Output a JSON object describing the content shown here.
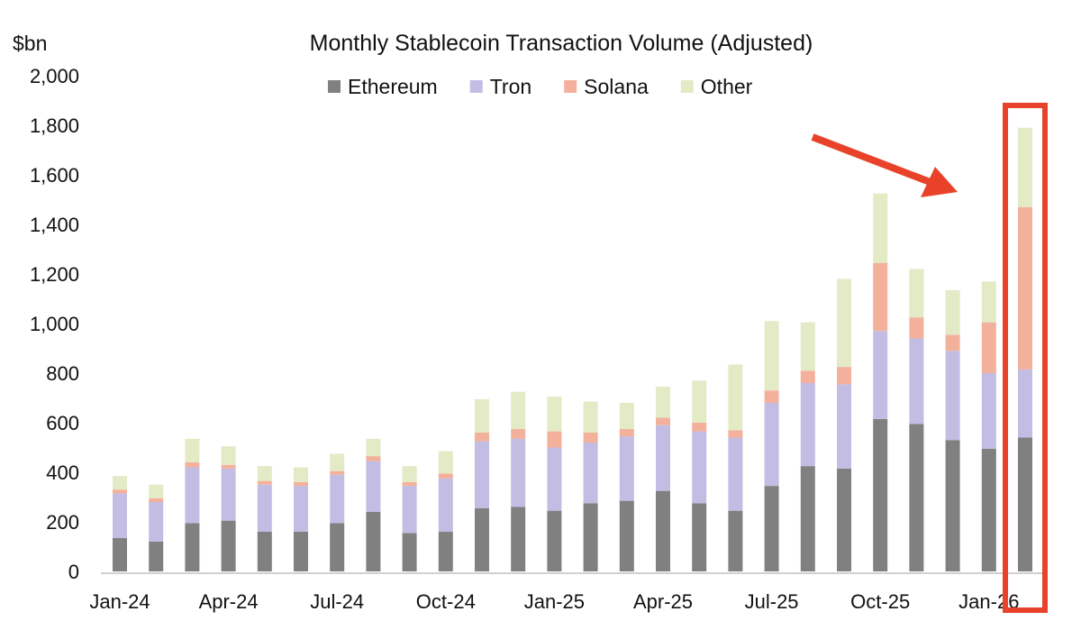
{
  "chart_data": {
    "type": "stacked-bar",
    "title": "Monthly Stablecoin Transaction Volume (Adjusted)",
    "ylabel": "$bn",
    "xlabel": "",
    "ylim": [
      0,
      2000
    ],
    "yticks": [
      "0",
      "200",
      "400",
      "600",
      "800",
      "1,000",
      "1,200",
      "1,400",
      "1,600",
      "1,800",
      "2,000"
    ],
    "xtick_labels": [
      "Jan-24",
      "Apr-24",
      "Jul-24",
      "Oct-24",
      "Jan-25",
      "Apr-25",
      "Jul-25",
      "Oct-25",
      "Jan-26"
    ],
    "categories": [
      "Jan-24",
      "Feb-24",
      "Mar-24",
      "Apr-24",
      "May-24",
      "Jun-24",
      "Jul-24",
      "Aug-24",
      "Sep-24",
      "Oct-24",
      "Nov-24",
      "Dec-24",
      "Jan-25",
      "Feb-25",
      "Mar-25",
      "Apr-25",
      "May-25",
      "Jun-25",
      "Jul-25",
      "Aug-25",
      "Sep-25",
      "Oct-25",
      "Nov-25",
      "Dec-25",
      "Jan-26",
      "Feb-26"
    ],
    "legend_position": "top",
    "grid": false,
    "series": [
      {
        "name": "Ethereum",
        "color": "#808080",
        "values": [
          135,
          120,
          195,
          205,
          160,
          160,
          195,
          240,
          155,
          160,
          255,
          260,
          245,
          275,
          285,
          325,
          275,
          245,
          345,
          425,
          415,
          615,
          595,
          530,
          495,
          540
        ]
      },
      {
        "name": "Tron",
        "color": "#c3bde3",
        "values": [
          180,
          160,
          225,
          210,
          190,
          185,
          195,
          205,
          190,
          215,
          270,
          275,
          255,
          245,
          260,
          265,
          290,
          295,
          335,
          335,
          340,
          355,
          345,
          360,
          305,
          275
        ]
      },
      {
        "name": "Solana",
        "color": "#f3b19c",
        "values": [
          15,
          15,
          20,
          15,
          15,
          15,
          15,
          20,
          15,
          20,
          35,
          40,
          65,
          40,
          30,
          30,
          35,
          30,
          50,
          50,
          70,
          275,
          85,
          65,
          205,
          655
        ]
      },
      {
        "name": "Other",
        "color": "#e3eac6",
        "values": [
          55,
          55,
          95,
          75,
          60,
          60,
          70,
          70,
          65,
          90,
          135,
          150,
          140,
          125,
          105,
          125,
          170,
          265,
          280,
          195,
          355,
          280,
          195,
          180,
          165,
          320
        ]
      }
    ],
    "annotations": {
      "highlight_category": "Feb-26",
      "highlight_color": "#e8432a"
    }
  }
}
